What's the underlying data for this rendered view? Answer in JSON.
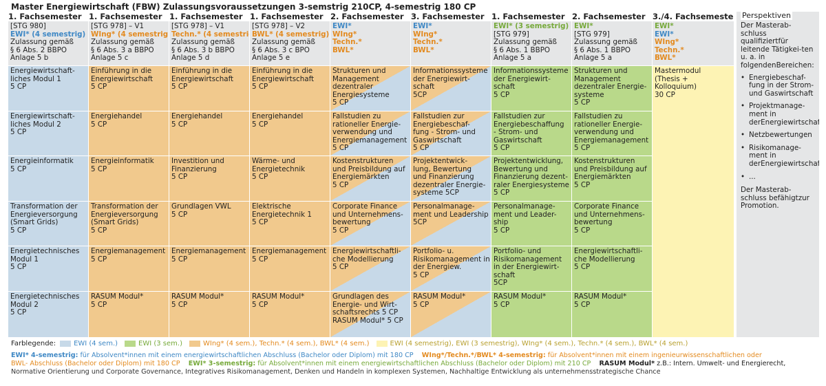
{
  "title": "Master Energiewirtschaft (FBW) Zulassungsvoraussetzungen 3-semstrig 210CP, 4-semestrig 180 CP",
  "columns": [
    {
      "header": "1. Fachsemester",
      "stg": "[STG 980]",
      "prog": "EWI* (4 semestrig)",
      "prog_color": "blue",
      "zul": [
        "Zulassung gemäß",
        "§ 6 Abs. 2 BBPO",
        "Anlage 5 b"
      ]
    },
    {
      "header": "1. Fachsemester",
      "stg": "[STG 978] – V1",
      "prog": "WIng* (4 semestrig)",
      "prog_color": "orange",
      "zul": [
        "Zulassung gemäß",
        "§ 6 Abs. 3 a BBPO",
        "Anlage 5 c"
      ]
    },
    {
      "header": "1. Fachsemester",
      "stg": "[STG 978] – V1",
      "prog": "Techn.* (4 semestrig)",
      "prog_color": "orange",
      "zul": [
        "Zulassung gemäß",
        "§ 6 Abs. 3 b BBPO",
        "Anlage 5 d"
      ]
    },
    {
      "header": "1. Fachsemester",
      "stg": "[STG 978] – V2",
      "prog": "BWL* (4 semestrig)",
      "prog_color": "orange",
      "zul": [
        "Zulassung gemäß",
        "§ 6 Abs. 3 c  BPO",
        "Anlage 5 e"
      ]
    },
    {
      "header": "2. Fachsemester",
      "lines": [
        {
          "text": "EWI*",
          "color": "blue"
        },
        {
          "text": "WIng*",
          "color": "orange"
        },
        {
          "text": "Techn.*",
          "color": "orange"
        },
        {
          "text": "BWL*",
          "color": "orange"
        }
      ]
    },
    {
      "header": "3. Fachsemester",
      "lines": [
        {
          "text": "EWI*",
          "color": "blue"
        },
        {
          "text": "WIng*",
          "color": "orange"
        },
        {
          "text": "Techn.*",
          "color": "orange"
        },
        {
          "text": "BWL*",
          "color": "orange"
        }
      ]
    },
    {
      "header": "1. Fachsemester",
      "prog": "EWI* (3 semestrig)",
      "prog_color": "green",
      "stg": "[STG 979]",
      "zul": [
        "Zulassung gemäß",
        "§ 6 Abs. 1 BBPO",
        "Anlage 5 a"
      ],
      "prog_first": true
    },
    {
      "header": "2. Fachsemester",
      "prog": "EWI*",
      "prog_color": "green",
      "stg": "[STG 979]",
      "zul": [
        "Zulassung gemäß",
        "§ 6 Abs. 1 BBPO",
        "Anlage 5 a"
      ],
      "prog_first": true
    },
    {
      "header": "3./4. Fachsemester",
      "lines": [
        {
          "text": "EWI*",
          "color": "green"
        },
        {
          "text": "EWI*",
          "color": "blue"
        },
        {
          "text": "WIng*",
          "color": "orange"
        },
        {
          "text": "Techn.*",
          "color": "orange"
        },
        {
          "text": "BWL*",
          "color": "orange"
        }
      ]
    }
  ],
  "modules": [
    [
      {
        "lines": [
          "Energiewirtschaft-",
          "liches Modul 1",
          "5 CP"
        ],
        "color": "blue"
      },
      {
        "lines": [
          "Energiewirtschaft-",
          "liches Modul 2",
          "5 CP"
        ],
        "color": "blue"
      },
      {
        "lines": [
          "Energieinformatik",
          "5 CP"
        ],
        "color": "blue"
      },
      {
        "lines": [
          "Transformation der",
          "Energieversorgung",
          "(Smart Grids)",
          "5 CP"
        ],
        "color": "blue"
      },
      {
        "lines": [
          "Energietechnisches",
          "Modul 1",
          "5 CP"
        ],
        "color": "blue"
      },
      {
        "lines": [
          "Energietechnisches",
          "Modul 2",
          "5 CP"
        ],
        "color": "blue"
      }
    ],
    [
      {
        "lines": [
          "Einführung in die",
          "Energiewirtschaft",
          "5 CP"
        ],
        "color": "orange"
      },
      {
        "lines": [
          "Energiehandel",
          "5 CP"
        ],
        "color": "orange"
      },
      {
        "lines": [
          "Energieinformatik",
          "5 CP"
        ],
        "color": "orange"
      },
      {
        "lines": [
          "Transformation der",
          "Energieversorgung",
          "(Smart Grids)",
          "5 CP"
        ],
        "color": "orange"
      },
      {
        "lines": [
          "Energiemanagement",
          "5 CP"
        ],
        "color": "orange"
      },
      {
        "lines": [
          "RASUM Modul*",
          "5 CP"
        ],
        "color": "orange"
      }
    ],
    [
      {
        "lines": [
          "Einführung in die",
          "Energiewirtschaft",
          "5 CP"
        ],
        "color": "orange"
      },
      {
        "lines": [
          "Energiehandel",
          "5 CP"
        ],
        "color": "orange"
      },
      {
        "lines": [
          "Investition und",
          "Finanzierung",
          "5 CP"
        ],
        "color": "orange"
      },
      {
        "lines": [
          "Grundlagen VWL",
          "5 CP"
        ],
        "color": "orange"
      },
      {
        "lines": [
          "Energiemanagement",
          "5 CP"
        ],
        "color": "orange"
      },
      {
        "lines": [
          "RASUM Modul*",
          "5 CP"
        ],
        "color": "orange"
      }
    ],
    [
      {
        "lines": [
          "Einführung in die",
          "Energiewirtschaft",
          "5 CP"
        ],
        "color": "orange"
      },
      {
        "lines": [
          "Energiehandel",
          "5 CP"
        ],
        "color": "orange"
      },
      {
        "lines": [
          "Wärme- und",
          "Energietechnik",
          "5 CP"
        ],
        "color": "orange"
      },
      {
        "lines": [
          "Elektrische",
          "Energietechnik 1",
          "5 CP"
        ],
        "color": "orange"
      },
      {
        "lines": [
          "Energiemanagement",
          "5 CP"
        ],
        "color": "orange"
      },
      {
        "lines": [
          "RASUM Modul*",
          "5 CP"
        ],
        "color": "orange"
      }
    ],
    [
      {
        "lines": [
          "Strukturen und",
          "Management",
          "dezentraler",
          "Energiesysteme",
          "5 CP"
        ],
        "color": "diag-ob"
      },
      {
        "lines": [
          "Fallstudien zu",
          "rationeller Energie-",
          "verwendung und",
          "Energiemanagement",
          "5 CP"
        ],
        "color": "diag-ob"
      },
      {
        "lines": [
          "Kostenstrukturen",
          "und Preisbildung auf",
          "Energiemärkten",
          "5 CP"
        ],
        "color": "diag-ob"
      },
      {
        "lines": [
          "Corporate Finance",
          "und Unternehmens-",
          "bewertung",
          "5 CP"
        ],
        "color": "diag-ob"
      },
      {
        "lines": [
          "Energiewirtschaftli-",
          "che Modellierung",
          "5 CP"
        ],
        "color": "diag-ob"
      },
      {
        "lines": [
          "Grundlagen des",
          "Energie- und Wirt-",
          "schaftsrechts   5 CP",
          " ",
          "RASUM Modul*   5 CP"
        ],
        "color": "diag-ob"
      }
    ],
    [
      {
        "lines": [
          "Informationssysteme",
          "der Energiewirt-",
          "schaft",
          "5CP"
        ],
        "color": "diag-ob"
      },
      {
        "lines": [
          "Fallstudien zur",
          "Energiebeschaf-",
          "fung - Strom- und",
          "Gaswirtschaft",
          "5 CP"
        ],
        "color": "diag-ob"
      },
      {
        "lines": [
          "Projektentwick-",
          "lung, Bewertung",
          "und Finanzierung",
          "dezentraler Energie-",
          "systeme     5CP"
        ],
        "color": "diag-ob"
      },
      {
        "lines": [
          "Personalmanage-",
          "ment und Leadership",
          "5CP"
        ],
        "color": "diag-ob"
      },
      {
        "lines": [
          "Portfolio- u.",
          "Risikomanagement in",
          "der Energiew.",
          "5 CP"
        ],
        "color": "diag-ob"
      },
      {
        "lines": [
          " ",
          " ",
          "RASUM Modul*",
          "5 CP"
        ],
        "color": "diag-ob"
      }
    ],
    [
      {
        "lines": [
          "Informationssysteme",
          "der Energiewirt-",
          "schaft",
          "5 CP"
        ],
        "color": "green"
      },
      {
        "lines": [
          "Fallstudien zur",
          "Energiebeschaffung",
          "- Strom- und",
          "Gaswirtschaft",
          "5 CP"
        ],
        "color": "green"
      },
      {
        "lines": [
          "Projektentwicklung,",
          "Bewertung und",
          "Finanzierung dezent-",
          "raler Energiesysteme",
          "5 CP"
        ],
        "color": "green"
      },
      {
        "lines": [
          "Personalmanage-",
          "ment und Leader-",
          "ship",
          "5 CP"
        ],
        "color": "green"
      },
      {
        "lines": [
          "Portfolio- und",
          "Risikomanagement",
          "in der Energiewirt-",
          "schaft",
          "5CP"
        ],
        "color": "green"
      },
      {
        "lines": [
          "RASUM Modul*",
          "5 CP"
        ],
        "color": "green"
      }
    ],
    [
      {
        "lines": [
          "Strukturen und",
          "Management",
          "dezentraler Energie-",
          "systeme",
          "5 CP"
        ],
        "color": "green"
      },
      {
        "lines": [
          "Fallstudien zu",
          "rationeller Energie-",
          "verwendung und",
          "Energiemanagement",
          "5 CP"
        ],
        "color": "green"
      },
      {
        "lines": [
          "Kostenstrukturen",
          "und Preisbildung auf",
          "Energiemärkten",
          "5 CP"
        ],
        "color": "green"
      },
      {
        "lines": [
          "Corporate Finance",
          "und Unternehmens-",
          "bewertung",
          "5 CP"
        ],
        "color": "green"
      },
      {
        "lines": [
          "Energiewirtschaftli-",
          "che Modellierung",
          "5 CP"
        ],
        "color": "green"
      },
      {
        "lines": [
          "RASUM Modul*",
          "5 CP"
        ],
        "color": "green"
      }
    ]
  ],
  "master_module": {
    "lines": [
      "Mastermodul",
      "(Thesis +",
      "Kolloquium)",
      "30 CP"
    ]
  },
  "perspectives": {
    "title": "Perspektiven",
    "intro": [
      "Der Masterab-",
      "schluss qualifiziert",
      "für leitende Tätigkei-",
      "ten u. a. in folgenden",
      "Bereichen:"
    ],
    "items": [
      [
        "Energiebeschaf-",
        "fung in der Strom-",
        "und Gaswirtschaft"
      ],
      [
        "Projektmanage-",
        "ment in der",
        "Energiewirtschaft"
      ],
      [
        "Netzbewertungen"
      ],
      [
        "Risikomanage-",
        "ment in der",
        "Energiewirtschaft"
      ],
      [
        "..."
      ]
    ],
    "outro": [
      "Der Masterab-",
      "schluss befähigt",
      "zur Promotion."
    ]
  },
  "legend": {
    "label": "Farblegende:",
    "items": [
      {
        "text": "EWI (4 sem.)",
        "swatch": "blue",
        "text_color": "blue"
      },
      {
        "text": "EWI (3 sem.)",
        "swatch": "green",
        "text_color": "green"
      },
      {
        "text": "WIng* (4 sem.), Techn.* (4 sem.), BWL* (4 sem.)",
        "swatch": "orange",
        "text_color": "orange"
      },
      {
        "text": "EWI (4 semestrig), EWI (3 semestrig), WIng* (4 sem.), Techn.* (4 sem.), BWL* (4 sem.)",
        "swatch": "yellow",
        "text_color": "mixed"
      }
    ]
  },
  "footnotes": {
    "line1": [
      {
        "text": "EWI* 4-semestrig:",
        "color": "blue",
        "bold": true
      },
      {
        "text": " für Absolvent*innen mit einem energiewirtschaftlichen Abschluss (Bachelor oder Diplom) mit 180 CP    ",
        "color": "blue",
        "bold": false
      },
      {
        "text": "WIng*/Techn.*/BWL* 4-semestrig:",
        "color": "orange",
        "bold": true
      },
      {
        "text": " für Absolvent*innen mit einem ingenieurwissenschaftlichen oder",
        "color": "orange",
        "bold": false
      }
    ],
    "line2": [
      {
        "text": "BWL- Abschluss (Bachelor oder Diplom) mit 180 CP    ",
        "color": "orange",
        "bold": false
      },
      {
        "text": "EWI* 3-semestrig:",
        "color": "green",
        "bold": true
      },
      {
        "text": " für Absolvent*innen mit einem energiewirtschaftlichen Abschluss (Bachelor oder Diplom) mit 210 CP    ",
        "color": "green",
        "bold": false
      },
      {
        "text": "RASUM Modul*",
        "color": "dark",
        "bold": true
      },
      {
        "text": " z.B.: Intern. Umwelt- und Energierecht,",
        "color": "dark",
        "bold": false
      }
    ],
    "line3": "Normative Orientierung und Corporate Governance, Integratives Risikomanagement, Denken und Handeln in komplexen Systemen, Nachhaltige Entwicklung als unternehmensstrategische Chance"
  },
  "colors": {
    "blue": "#3f88c5",
    "orange": "#e38a1f",
    "green": "#76a93a",
    "cell_blue": "#c7d9e8",
    "cell_orange": "#f1c98d",
    "cell_green": "#b9d98a",
    "cell_yellow": "#fdf3b4",
    "cell_grey": "#e5e6e7"
  }
}
